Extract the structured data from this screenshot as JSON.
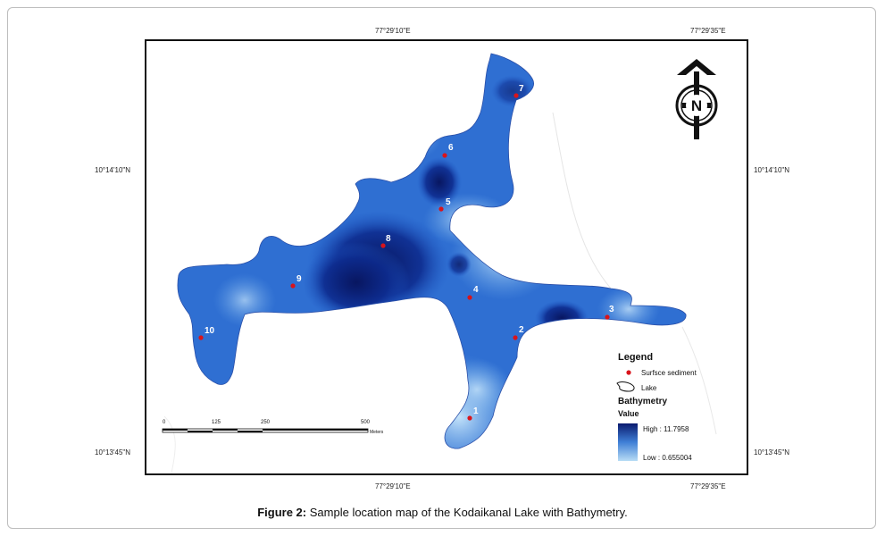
{
  "figure": {
    "caption_label": "Figure 2:",
    "caption_text": "Sample location map of the Kodaikanal Lake with Bathymetry."
  },
  "coordinates": {
    "top_left": "77°29'10\"E",
    "top_right": "77°29'35\"E",
    "bottom_left": "77°29'10\"E",
    "bottom_right": "77°29'35\"E",
    "left_upper": "10°14'10\"N",
    "left_lower": "10°13'45\"N",
    "right_upper": "10°14'10\"N",
    "right_lower": "10°13'45\"N"
  },
  "north_arrow": {
    "letter": "N"
  },
  "legend": {
    "title": "Legend",
    "sediment_label": "Surfsce sediment",
    "lake_label": "Lake",
    "bathymetry_title": "Bathymetry",
    "value_title": "Value",
    "high_label": "High : 11.7958",
    "low_label": "Low : 0.655004",
    "high_color": "#0a1a6e",
    "low_color": "#b8dcf5",
    "point_color": "#d9141b"
  },
  "scale_bar": {
    "ticks": [
      "0",
      "125",
      "250",
      "500"
    ],
    "unit": "Meters"
  },
  "sample_points": [
    {
      "id": "1"
    },
    {
      "id": "2"
    },
    {
      "id": "3"
    },
    {
      "id": "4"
    },
    {
      "id": "5"
    },
    {
      "id": "6"
    },
    {
      "id": "7"
    },
    {
      "id": "8"
    },
    {
      "id": "9"
    },
    {
      "id": "10"
    }
  ]
}
